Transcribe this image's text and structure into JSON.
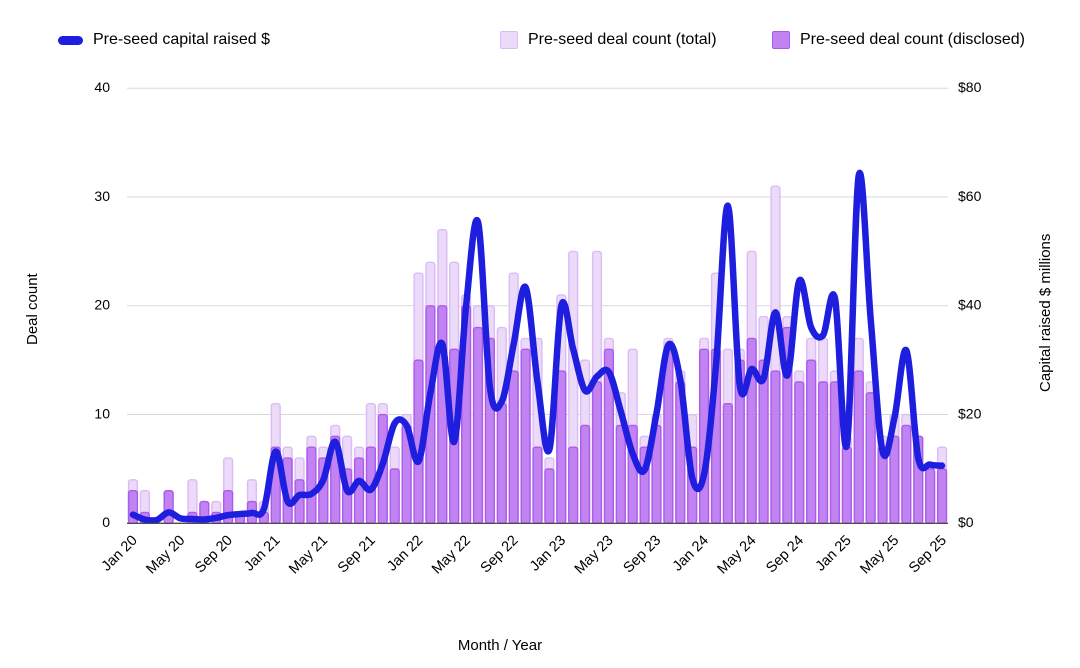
{
  "legend": {
    "items": [
      {
        "label": "Pre-seed capital raised $",
        "type": "line",
        "color": "#1e1ede",
        "border": "#1e1ede"
      },
      {
        "label": "Pre-seed deal count (total)",
        "type": "square",
        "color": "#ecdaf9",
        "border": "#dcbbf6"
      },
      {
        "label": "Pre-seed deal count (disclosed)",
        "type": "square",
        "color": "#c283f2",
        "border": "#ab5aec"
      }
    ]
  },
  "axes": {
    "left": {
      "title": "Deal count",
      "ticks": [
        "40",
        "30",
        "20",
        "10",
        "0"
      ],
      "max": 40
    },
    "right": {
      "title": "Capital raised $ millions",
      "ticks": [
        "$80",
        "$60",
        "$40",
        "$20",
        "$0"
      ],
      "max": 80
    },
    "x": {
      "title": "Month / Year",
      "label_every_n_months": 4
    }
  },
  "colors": {
    "grid": "#d9d9d9",
    "baseline": "#424242",
    "tick_text": "#000000"
  },
  "chart_data": {
    "type": "combo",
    "categories": [
      "Jan 20",
      "Feb 20",
      "Mar 20",
      "Apr 20",
      "May 20",
      "Jun 20",
      "Jul 20",
      "Aug 20",
      "Sep 20",
      "Oct 20",
      "Nov 20",
      "Dec 20",
      "Jan 21",
      "Feb 21",
      "Mar 21",
      "Apr 21",
      "May 21",
      "Jun 21",
      "Jul 21",
      "Aug 21",
      "Sep 21",
      "Oct 21",
      "Nov 21",
      "Dec 21",
      "Jan 22",
      "Feb 22",
      "Mar 22",
      "Apr 22",
      "May 22",
      "Jun 22",
      "Jul 22",
      "Aug 22",
      "Sep 22",
      "Oct 22",
      "Nov 22",
      "Dec 22",
      "Jan 23",
      "Feb 23",
      "Mar 23",
      "Apr 23",
      "May 23",
      "Jun 23",
      "Jul 23",
      "Aug 23",
      "Sep 23",
      "Oct 23",
      "Nov 23",
      "Dec 23",
      "Jan 24",
      "Feb 24",
      "Mar 24",
      "Apr 24",
      "May 24",
      "Jun 24",
      "Jul 24",
      "Aug 24",
      "Sep 24",
      "Oct 24",
      "Nov 24",
      "Dec 24",
      "Jan 25",
      "Feb 25",
      "Mar 25",
      "Apr 25",
      "May 25",
      "Jun 25",
      "Jul 25",
      "Aug 25",
      "Sep 25"
    ],
    "series": [
      {
        "name": "Pre-seed capital raised $",
        "type": "line",
        "axis": "right",
        "unit": "$ millions",
        "color": "#1e1ede",
        "values": [
          1.6,
          0.7,
          0.6,
          2,
          0.9,
          0.8,
          0.7,
          1,
          1.5,
          1.7,
          1.9,
          2.6,
          13.2,
          4,
          5.2,
          5.4,
          8,
          15,
          6,
          7.8,
          6.2,
          11,
          18.4,
          18,
          11.4,
          24,
          33,
          15,
          40,
          55.4,
          25,
          22.4,
          33,
          43.4,
          26,
          13.6,
          40,
          32,
          24.4,
          27,
          27.8,
          20.6,
          12.8,
          9.8,
          20.2,
          32.8,
          26.4,
          8.4,
          9,
          29,
          58.4,
          25.4,
          28.4,
          26.6,
          38.8,
          27.2,
          44.6,
          36,
          34.6,
          41.4,
          14.4,
          64,
          37.6,
          13.2,
          19.4,
          31.8,
          12,
          10.8,
          10.6
        ]
      },
      {
        "name": "Pre-seed deal count (total)",
        "type": "bar",
        "axis": "left",
        "color": "#ecdaf9",
        "border": "#dcbbf6",
        "values": [
          4,
          3,
          0,
          3,
          0,
          4,
          2,
          2,
          6,
          1,
          4,
          2,
          11,
          7,
          6,
          8,
          7,
          9,
          8,
          7,
          11,
          11,
          7,
          10,
          23,
          24,
          27,
          24,
          21,
          20,
          20,
          18,
          23,
          17,
          17,
          6,
          21,
          25,
          15,
          25,
          17,
          12,
          16,
          8,
          10,
          17,
          14,
          10,
          17,
          23,
          16,
          16,
          25,
          19,
          31,
          19,
          14,
          17,
          17,
          14,
          8,
          17,
          13,
          8,
          10,
          10,
          8,
          5,
          7
        ]
      },
      {
        "name": "Pre-seed deal count (disclosed)",
        "type": "bar",
        "axis": "left",
        "color": "#c283f2",
        "border": "#ab5aec",
        "values": [
          3,
          1,
          0,
          3,
          0,
          1,
          2,
          1,
          3,
          1,
          2,
          1,
          7,
          6,
          4,
          7,
          6,
          8,
          5,
          6,
          7,
          10,
          5,
          9,
          15,
          20,
          20,
          16,
          20,
          18,
          17,
          11,
          14,
          16,
          7,
          5,
          14,
          7,
          9,
          13,
          16,
          9,
          9,
          7,
          9,
          16,
          13,
          7,
          16,
          16,
          11,
          15,
          17,
          15,
          14,
          18,
          13,
          15,
          13,
          13,
          7,
          14,
          12,
          7,
          8,
          9,
          8,
          5,
          5
        ]
      }
    ],
    "ylim_left": [
      0,
      40
    ],
    "ylim_right": [
      0,
      80
    ],
    "grid": true,
    "legend_position": "top"
  }
}
